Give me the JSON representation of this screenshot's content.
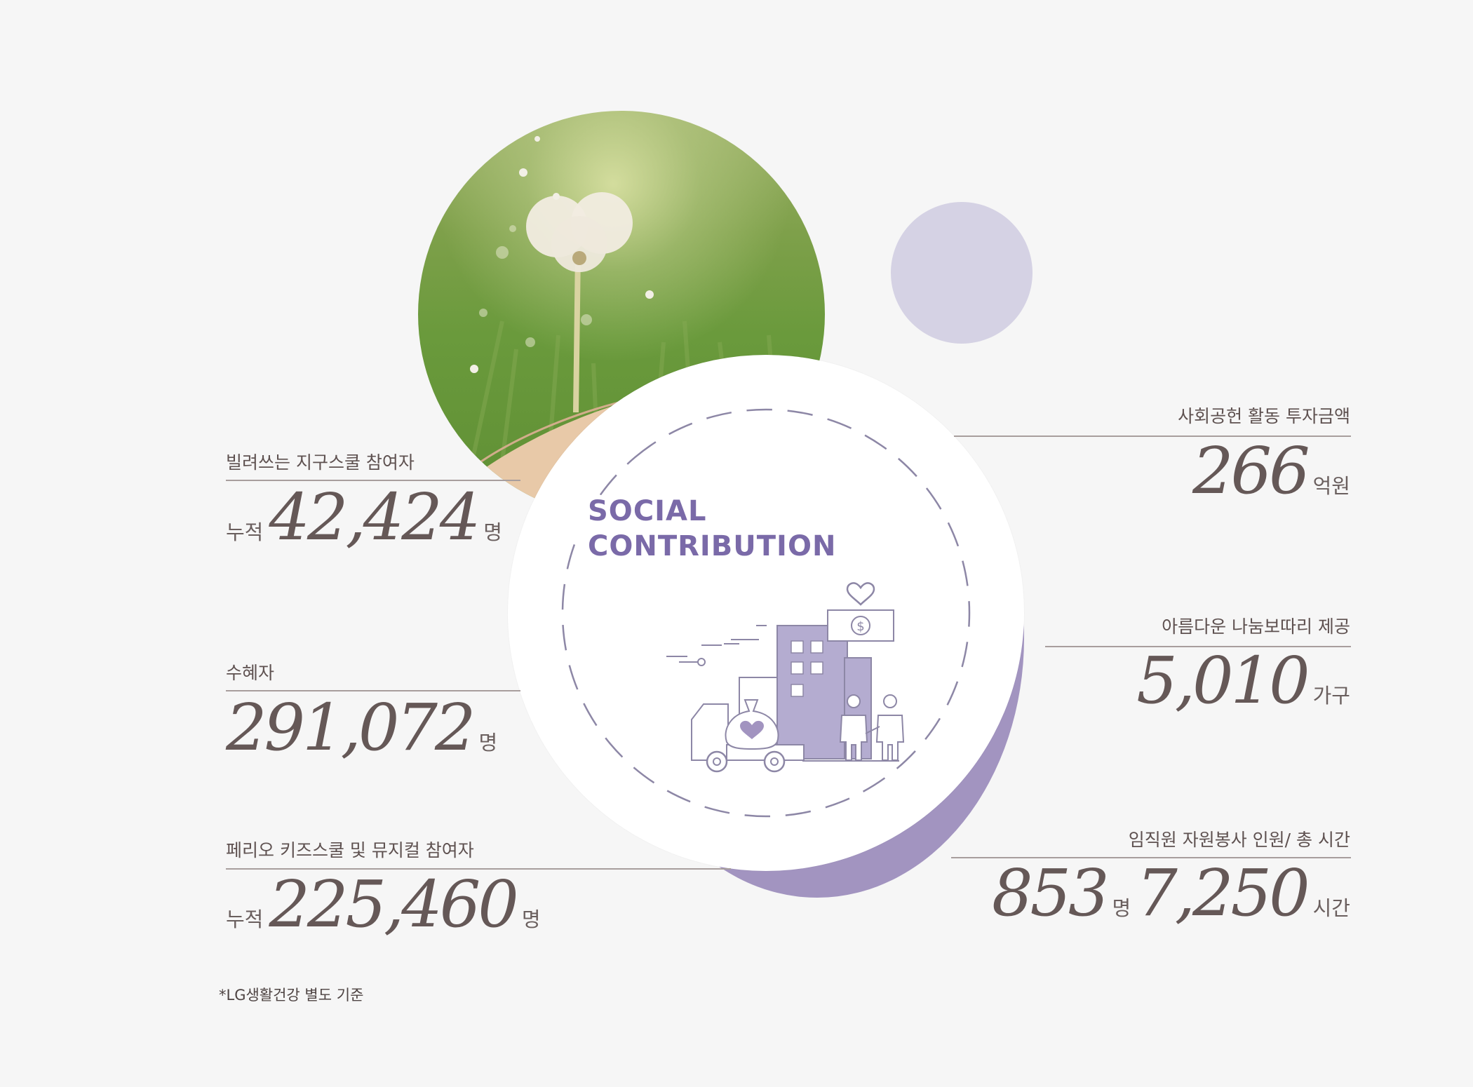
{
  "center": {
    "line1": "SOCIAL",
    "line2": "CONTRIBUTION"
  },
  "left": [
    {
      "label": "빌려쓰는 지구스쿨 참여자",
      "prefix": "누적",
      "value": "42,424",
      "unit": "명"
    },
    {
      "label": "수혜자",
      "prefix": "",
      "value": "291,072",
      "unit": "명"
    },
    {
      "label": "페리오 키즈스쿨 및 뮤지컬 참여자",
      "prefix": "누적",
      "value": "225,460",
      "unit": "명"
    }
  ],
  "right": [
    {
      "label": "사회공헌 활동 투자금액",
      "value": "266",
      "unit": "억원"
    },
    {
      "label": "아름다운 나눔보따리 제공",
      "value": "5,010",
      "unit": "가구"
    },
    {
      "label": "임직원 자원봉사 인원/ 총 시간",
      "value": "853",
      "unit": "명",
      "value2": "7,250",
      "unit2": "시간"
    }
  ],
  "footnote": "*LG생활건강 별도 기준",
  "colors": {
    "accent": "#7a6aa8",
    "accent_light": "#d5d2e4",
    "accent_mid": "#a294c0",
    "text": "#5e5150"
  },
  "icons": [
    "dandelion-photo",
    "charity-illustration-icon",
    "heart-icon",
    "dollar-icon",
    "truck-icon",
    "building-icon",
    "people-icon"
  ]
}
